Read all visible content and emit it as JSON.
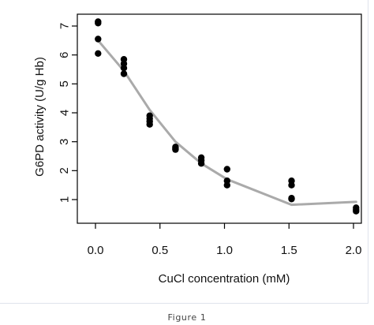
{
  "caption": "Figure 1",
  "chart_data": {
    "type": "scatter",
    "title": "",
    "xlabel": "CuCl concentration (mM)",
    "ylabel": "G6PD activity (U/g Hb)",
    "xlim": [
      0.0,
      2.0
    ],
    "ylim": [
      1,
      7
    ],
    "x_ticks": [
      0.0,
      0.5,
      1.0,
      1.5,
      2.0
    ],
    "x_tick_labels": [
      "0.0",
      "0.5",
      "1.0",
      "1.5",
      "2.0"
    ],
    "y_ticks": [
      1,
      2,
      3,
      4,
      5,
      6,
      7
    ],
    "y_tick_labels": [
      "1",
      "2",
      "3",
      "4",
      "5",
      "6",
      "7"
    ],
    "grid": false,
    "legend": "none",
    "series": [
      {
        "type": "scatter",
        "color": "#000000",
        "points": [
          {
            "x": 0.02,
            "y": 7.15
          },
          {
            "x": 0.02,
            "y": 7.1
          },
          {
            "x": 0.02,
            "y": 6.55
          },
          {
            "x": 0.02,
            "y": 6.05
          },
          {
            "x": 0.22,
            "y": 5.85
          },
          {
            "x": 0.22,
            "y": 5.7
          },
          {
            "x": 0.22,
            "y": 5.55
          },
          {
            "x": 0.22,
            "y": 5.35
          },
          {
            "x": 0.42,
            "y": 3.9
          },
          {
            "x": 0.42,
            "y": 3.8
          },
          {
            "x": 0.42,
            "y": 3.7
          },
          {
            "x": 0.42,
            "y": 3.6
          },
          {
            "x": 0.62,
            "y": 2.82
          },
          {
            "x": 0.62,
            "y": 2.77
          },
          {
            "x": 0.62,
            "y": 2.73
          },
          {
            "x": 0.82,
            "y": 2.45
          },
          {
            "x": 0.82,
            "y": 2.35
          },
          {
            "x": 0.82,
            "y": 2.25
          },
          {
            "x": 1.02,
            "y": 2.05
          },
          {
            "x": 1.02,
            "y": 1.65
          },
          {
            "x": 1.02,
            "y": 1.5
          },
          {
            "x": 1.52,
            "y": 1.65
          },
          {
            "x": 1.52,
            "y": 1.5
          },
          {
            "x": 1.52,
            "y": 1.05
          },
          {
            "x": 1.52,
            "y": 1.02
          },
          {
            "x": 2.02,
            "y": 0.72
          },
          {
            "x": 2.02,
            "y": 0.65
          },
          {
            "x": 2.02,
            "y": 0.6
          }
        ]
      },
      {
        "type": "line",
        "color": "#aaaaaa",
        "x": [
          0.02,
          0.22,
          0.42,
          0.62,
          0.82,
          1.02,
          1.52,
          2.02
        ],
        "y": [
          6.5,
          5.45,
          4.1,
          3.0,
          2.25,
          1.7,
          0.82,
          0.92
        ]
      }
    ]
  }
}
